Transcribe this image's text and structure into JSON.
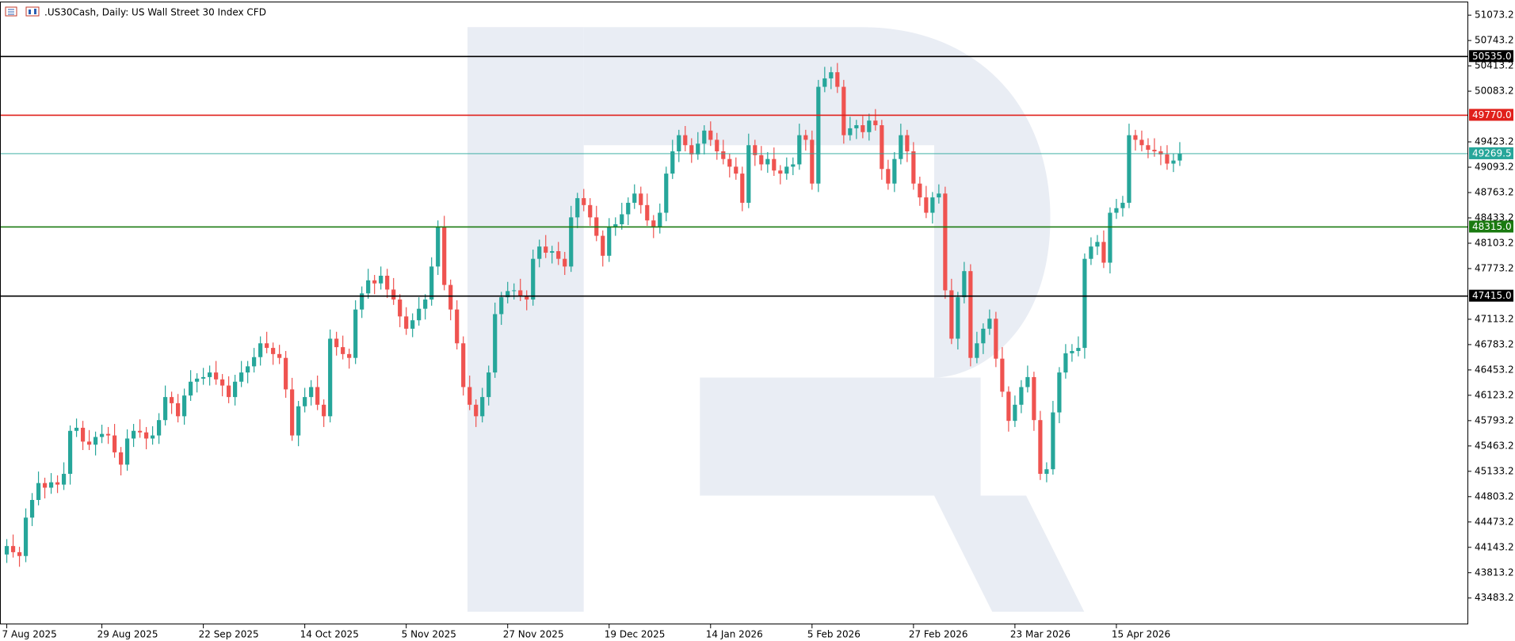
{
  "chart_data": {
    "type": "candlestick",
    "title": ".US30Cash, Daily:  US Wall Street 30 Index CFD",
    "up_color": "#26a69a",
    "down_color": "#ef5350",
    "ylim": [
      43140,
      51250
    ],
    "yticks": [
      51073.2,
      50743.2,
      50413.2,
      50083.2,
      49423.2,
      49093.2,
      48763.2,
      48433.2,
      48103.2,
      47773.2,
      47113.2,
      46783.2,
      46453.2,
      46123.2,
      45793.2,
      45463.2,
      45133.2,
      44803.2,
      44473.2,
      44143.2,
      43813.2,
      43483.2
    ],
    "levels": [
      {
        "value": 50535.0,
        "label": "50535.0",
        "color": "#000000"
      },
      {
        "value": 49770.0,
        "label": "49770.0",
        "color": "#e0201b"
      },
      {
        "value": 48315.0,
        "label": "48315.0",
        "color": "#1a7a10"
      },
      {
        "value": 47415.0,
        "label": "47415.0",
        "color": "#000000"
      },
      {
        "value": 49269.5,
        "label": "49269.5",
        "color": "#26a69a"
      }
    ],
    "categories": [
      "7 Aug 2025",
      null,
      null,
      null,
      null,
      null,
      null,
      null,
      null,
      null,
      null,
      null,
      null,
      null,
      null,
      "29 Aug 2025",
      null,
      null,
      null,
      null,
      null,
      null,
      null,
      null,
      null,
      null,
      null,
      null,
      null,
      null,
      null,
      "22 Sep 2025",
      null,
      null,
      null,
      null,
      null,
      null,
      null,
      null,
      null,
      null,
      null,
      null,
      null,
      null,
      null,
      "14 Oct 2025",
      null,
      null,
      null,
      null,
      null,
      null,
      null,
      null,
      null,
      null,
      null,
      null,
      null,
      null,
      null,
      "5 Nov 2025",
      null,
      null,
      null,
      null,
      null,
      null,
      null,
      null,
      null,
      null,
      null,
      null,
      null,
      null,
      null,
      "27 Nov 2025",
      null,
      null,
      null,
      null,
      null,
      null,
      null,
      null,
      null,
      null,
      null,
      null,
      null,
      null,
      null,
      "19 Dec 2025",
      null,
      null,
      null,
      null,
      null,
      null,
      null,
      null,
      null,
      null,
      null,
      null,
      null,
      null,
      null,
      "14 Jan 2026",
      null,
      null,
      null,
      null,
      null,
      null,
      null,
      null,
      null,
      null,
      null,
      null,
      null,
      null,
      null,
      "5 Feb 2026",
      null,
      null,
      null,
      null,
      null,
      null,
      null,
      null,
      null,
      null,
      null,
      null,
      null,
      null,
      null,
      "27 Feb 2026",
      null,
      null,
      null,
      null,
      null,
      null,
      null,
      null,
      null,
      null,
      null,
      null,
      null,
      null,
      null,
      "23 Mar 2026",
      null,
      null,
      null,
      null,
      null,
      null,
      null,
      null,
      null,
      null,
      null,
      null,
      null,
      null,
      null,
      "15 Apr 2026",
      null,
      null,
      null,
      null,
      null,
      null,
      null,
      null,
      null,
      null
    ],
    "ohlc": [
      [
        44050,
        44250,
        43940,
        44160
      ],
      [
        44160,
        44310,
        44010,
        44080
      ],
      [
        44080,
        44150,
        43890,
        44030
      ],
      [
        44030,
        44650,
        43950,
        44530
      ],
      [
        44530,
        44850,
        44420,
        44760
      ],
      [
        44760,
        45130,
        44690,
        44980
      ],
      [
        44980,
        45050,
        44780,
        44920
      ],
      [
        44920,
        45110,
        44840,
        44990
      ],
      [
        44990,
        45080,
        44850,
        44960
      ],
      [
        44960,
        45250,
        44890,
        45100
      ],
      [
        45100,
        45730,
        44960,
        45660
      ],
      [
        45660,
        45820,
        45580,
        45700
      ],
      [
        45700,
        45790,
        45410,
        45520
      ],
      [
        45520,
        45670,
        45410,
        45480
      ],
      [
        45480,
        45650,
        45340,
        45580
      ],
      [
        45580,
        45740,
        45500,
        45620
      ],
      [
        45620,
        45710,
        45490,
        45600
      ],
      [
        45600,
        45750,
        45310,
        45380
      ],
      [
        45380,
        45450,
        45080,
        45220
      ],
      [
        45220,
        45680,
        45140,
        45560
      ],
      [
        45560,
        45750,
        45450,
        45660
      ],
      [
        45660,
        45810,
        45570,
        45640
      ],
      [
        45640,
        45710,
        45420,
        45560
      ],
      [
        45560,
        45720,
        45480,
        45600
      ],
      [
        45600,
        45890,
        45490,
        45800
      ],
      [
        45800,
        46250,
        45730,
        46100
      ],
      [
        46100,
        46170,
        45880,
        46020
      ],
      [
        46020,
        46140,
        45770,
        45850
      ],
      [
        45850,
        46210,
        45740,
        46120
      ],
      [
        46120,
        46450,
        46050,
        46300
      ],
      [
        46300,
        46410,
        46160,
        46340
      ],
      [
        46340,
        46480,
        46260,
        46360
      ],
      [
        46360,
        46510,
        46250,
        46420
      ],
      [
        46420,
        46570,
        46260,
        46330
      ],
      [
        46330,
        46400,
        46110,
        46250
      ],
      [
        46250,
        46370,
        46020,
        46100
      ],
      [
        46100,
        46390,
        45990,
        46300
      ],
      [
        46300,
        46570,
        46230,
        46420
      ],
      [
        46420,
        46570,
        46280,
        46500
      ],
      [
        46500,
        46740,
        46420,
        46620
      ],
      [
        46620,
        46890,
        46510,
        46800
      ],
      [
        46800,
        46950,
        46670,
        46740
      ],
      [
        46740,
        46810,
        46520,
        46660
      ],
      [
        46660,
        46780,
        46530,
        46610
      ],
      [
        46610,
        46700,
        46090,
        46200
      ],
      [
        46200,
        46350,
        45530,
        45600
      ],
      [
        45600,
        46050,
        45460,
        45980
      ],
      [
        45980,
        46220,
        45900,
        46100
      ],
      [
        46100,
        46320,
        45990,
        46230
      ],
      [
        46230,
        46380,
        45930,
        46000
      ],
      [
        46000,
        46070,
        45710,
        45850
      ],
      [
        45850,
        46980,
        45770,
        46860
      ],
      [
        46860,
        46950,
        46640,
        46750
      ],
      [
        46750,
        46900,
        46590,
        46660
      ],
      [
        46660,
        46730,
        46470,
        46610
      ],
      [
        46610,
        47360,
        46530,
        47240
      ],
      [
        47240,
        47540,
        47130,
        47450
      ],
      [
        47450,
        47770,
        47380,
        47620
      ],
      [
        47620,
        47690,
        47440,
        47580
      ],
      [
        47580,
        47800,
        47500,
        47680
      ],
      [
        47680,
        47770,
        47390,
        47500
      ],
      [
        47500,
        47650,
        47300,
        47370
      ],
      [
        47370,
        47440,
        47010,
        47150
      ],
      [
        47150,
        47270,
        46910,
        46990
      ],
      [
        46990,
        47190,
        46880,
        47100
      ],
      [
        47100,
        47400,
        47030,
        47250
      ],
      [
        47250,
        47440,
        47110,
        47370
      ],
      [
        47370,
        47920,
        47290,
        47800
      ],
      [
        47800,
        48400,
        47690,
        48310
      ],
      [
        48310,
        48460,
        47490,
        47560
      ],
      [
        47560,
        47630,
        47100,
        47240
      ],
      [
        47240,
        47360,
        46720,
        46800
      ],
      [
        46800,
        46890,
        46120,
        46230
      ],
      [
        46230,
        46380,
        45930,
        46000
      ],
      [
        46000,
        46070,
        45710,
        45850
      ],
      [
        45850,
        46220,
        45770,
        46100
      ],
      [
        46100,
        46510,
        45990,
        46420
      ],
      [
        46420,
        47330,
        46350,
        47180
      ],
      [
        47180,
        47470,
        47040,
        47400
      ],
      [
        47400,
        47600,
        47320,
        47480
      ],
      [
        47480,
        47580,
        47370,
        47490
      ],
      [
        47490,
        47640,
        47350,
        47420
      ],
      [
        47420,
        47490,
        47230,
        47370
      ],
      [
        47370,
        48020,
        47290,
        47900
      ],
      [
        47900,
        48150,
        47790,
        48060
      ],
      [
        48060,
        48210,
        47910,
        47980
      ],
      [
        47980,
        48070,
        47840,
        48000
      ],
      [
        48000,
        48120,
        47820,
        47900
      ],
      [
        47900,
        47990,
        47690,
        47800
      ],
      [
        47800,
        48590,
        47730,
        48440
      ],
      [
        48440,
        48760,
        48300,
        48690
      ],
      [
        48690,
        48810,
        48520,
        48600
      ],
      [
        48600,
        48690,
        48330,
        48440
      ],
      [
        48440,
        48590,
        48130,
        48200
      ],
      [
        48200,
        48270,
        47800,
        47940
      ],
      [
        47940,
        48430,
        47860,
        48310
      ],
      [
        48310,
        48440,
        48200,
        48350
      ],
      [
        48350,
        48630,
        48280,
        48480
      ],
      [
        48480,
        48700,
        48340,
        48630
      ],
      [
        48630,
        48870,
        48550,
        48750
      ],
      [
        48750,
        48840,
        48490,
        48600
      ],
      [
        48600,
        48750,
        48330,
        48400
      ],
      [
        48400,
        48470,
        48170,
        48310
      ],
      [
        48310,
        48620,
        48230,
        48500
      ],
      [
        48500,
        49100,
        48390,
        49010
      ],
      [
        49010,
        49450,
        48940,
        49300
      ],
      [
        49300,
        49580,
        49160,
        49510
      ],
      [
        49510,
        49630,
        49300,
        49380
      ],
      [
        49380,
        49470,
        49150,
        49260
      ],
      [
        49260,
        49550,
        49190,
        49400
      ],
      [
        49400,
        49640,
        49260,
        49570
      ],
      [
        49570,
        49690,
        49370,
        49450
      ],
      [
        49450,
        49540,
        49190,
        49300
      ],
      [
        49300,
        49450,
        49130,
        49200
      ],
      [
        49200,
        49270,
        48960,
        49100
      ],
      [
        49100,
        49220,
        48930,
        49010
      ],
      [
        49010,
        49100,
        48520,
        48630
      ],
      [
        48630,
        49530,
        48560,
        49380
      ],
      [
        49380,
        49450,
        49110,
        49250
      ],
      [
        49250,
        49370,
        49050,
        49130
      ],
      [
        49130,
        49290,
        49020,
        49200
      ],
      [
        49200,
        49350,
        48980,
        49050
      ],
      [
        49050,
        49120,
        48870,
        49010
      ],
      [
        49010,
        49220,
        48930,
        49100
      ],
      [
        49100,
        49220,
        48990,
        49130
      ],
      [
        49130,
        49660,
        49060,
        49510
      ],
      [
        49510,
        49580,
        49310,
        49450
      ],
      [
        49450,
        49570,
        48800,
        48880
      ],
      [
        48880,
        50230,
        48770,
        50140
      ],
      [
        50140,
        50400,
        50070,
        50250
      ],
      [
        50250,
        50400,
        50110,
        50330
      ],
      [
        50330,
        50450,
        50060,
        50140
      ],
      [
        50140,
        50230,
        49400,
        49510
      ],
      [
        49510,
        49750,
        49440,
        49600
      ],
      [
        49600,
        49710,
        49460,
        49640
      ],
      [
        49640,
        49760,
        49470,
        49550
      ],
      [
        49550,
        49790,
        49440,
        49700
      ],
      [
        49700,
        49850,
        49570,
        49640
      ],
      [
        49640,
        49710,
        48930,
        49070
      ],
      [
        49070,
        49190,
        48800,
        48880
      ],
      [
        48880,
        49290,
        48770,
        49200
      ],
      [
        49200,
        49660,
        49130,
        49510
      ],
      [
        49510,
        49580,
        49160,
        49300
      ],
      [
        49300,
        49420,
        48800,
        48880
      ],
      [
        48880,
        48970,
        48590,
        48700
      ],
      [
        48700,
        48850,
        48430,
        48500
      ],
      [
        48500,
        48770,
        48360,
        48700
      ],
      [
        48700,
        48870,
        48620,
        48750
      ],
      [
        48750,
        48840,
        47380,
        47490
      ],
      [
        47490,
        47640,
        46790,
        46860
      ],
      [
        46860,
        47470,
        46720,
        47400
      ],
      [
        47400,
        47860,
        47320,
        47740
      ],
      [
        47740,
        47830,
        46500,
        46610
      ],
      [
        46610,
        46950,
        46540,
        46800
      ],
      [
        46800,
        47060,
        46660,
        46990
      ],
      [
        46990,
        47240,
        46910,
        47120
      ],
      [
        47120,
        47210,
        46490,
        46600
      ],
      [
        46600,
        46750,
        46100,
        46170
      ],
      [
        46170,
        46240,
        45650,
        45790
      ],
      [
        45790,
        46120,
        45710,
        46000
      ],
      [
        46000,
        46320,
        45890,
        46230
      ],
      [
        46230,
        46510,
        46160,
        46360
      ],
      [
        46360,
        46430,
        45660,
        45800
      ],
      [
        45800,
        45920,
        45020,
        45100
      ],
      [
        45100,
        45250,
        44990,
        45160
      ],
      [
        45160,
        46050,
        45090,
        45900
      ],
      [
        45900,
        46490,
        45760,
        46420
      ],
      [
        46420,
        46790,
        46340,
        46670
      ],
      [
        46670,
        46790,
        46560,
        46700
      ],
      [
        46700,
        46890,
        46630,
        46740
      ],
      [
        46740,
        47970,
        46600,
        47900
      ],
      [
        47900,
        48180,
        47820,
        48060
      ],
      [
        48060,
        48210,
        47950,
        48120
      ],
      [
        48120,
        48270,
        47780,
        47850
      ],
      [
        47850,
        48570,
        47710,
        48500
      ],
      [
        48500,
        48680,
        48420,
        48560
      ],
      [
        48560,
        48720,
        48450,
        48630
      ],
      [
        48630,
        49660,
        48560,
        49510
      ],
      [
        49510,
        49580,
        49310,
        49450
      ],
      [
        49450,
        49570,
        49300,
        49380
      ],
      [
        49380,
        49470,
        49210,
        49320
      ],
      [
        49320,
        49470,
        49230,
        49300
      ],
      [
        49300,
        49370,
        49120,
        49260
      ],
      [
        49260,
        49380,
        49060,
        49140
      ],
      [
        49140,
        49270,
        49030,
        49180
      ],
      [
        49180,
        49420,
        49110,
        49270
      ]
    ]
  }
}
